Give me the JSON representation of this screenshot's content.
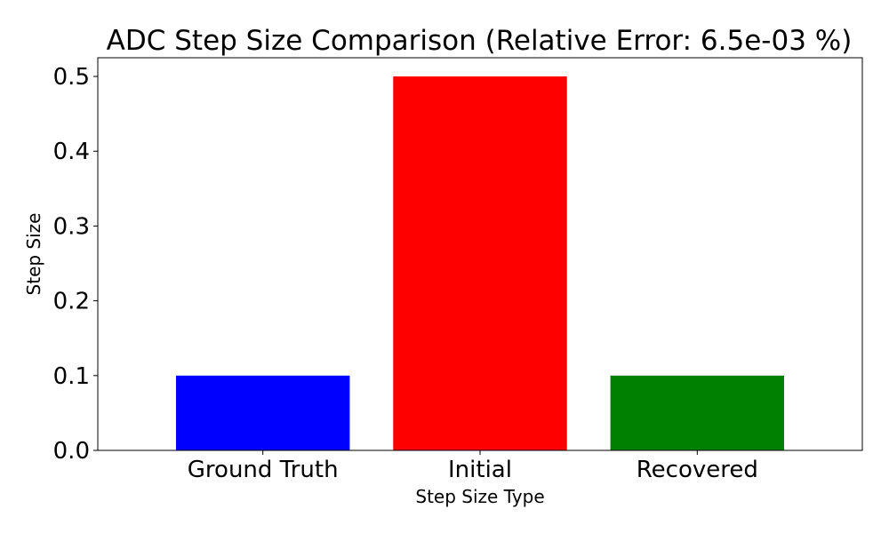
{
  "chart_data": {
    "type": "bar",
    "title": "ADC Step Size Comparison (Relative Error: 6.5e-03 %)",
    "xlabel": "Step Size Type",
    "ylabel": "Step Size",
    "categories": [
      "Ground Truth",
      "Initial",
      "Recovered"
    ],
    "values": [
      0.1,
      0.5,
      0.1
    ],
    "colors": [
      "#0000ff",
      "#ff0000",
      "#008000"
    ],
    "ylim": [
      0,
      0.525
    ],
    "yticks": [
      0.0,
      0.1,
      0.2,
      0.3,
      0.4,
      0.5
    ],
    "ytick_labels": [
      "0.0",
      "0.1",
      "0.2",
      "0.3",
      "0.4",
      "0.5"
    ],
    "grid": false,
    "legend": "none"
  }
}
